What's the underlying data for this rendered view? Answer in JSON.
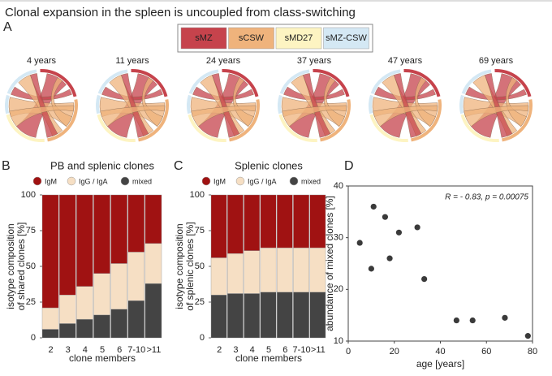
{
  "header": {
    "title": "Clonal expansion in the spleen is uncoupled from class-switching"
  },
  "panel_a": {
    "label": "A",
    "legend": [
      {
        "name": "sMZ",
        "color": "#c6434c"
      },
      {
        "name": "sCSW",
        "color": "#efb37c"
      },
      {
        "name": "sMD27",
        "color": "#fdf4c2"
      },
      {
        "name": "sMZ-CSW",
        "color": "#d4e8f4"
      }
    ],
    "diagrams": [
      "4 years",
      "11 years",
      "24 years",
      "37 years",
      "47 years",
      "69 years"
    ]
  },
  "chart_data": [
    {
      "type": "stacked_bar",
      "panel": "B",
      "title": "PB and splenic clones",
      "xlabel": "clone members",
      "ylabel": [
        "isotype composition",
        "of shared clones [%]"
      ],
      "categories": [
        "2",
        "3",
        "4",
        "5",
        "6",
        "7-10",
        ">11"
      ],
      "series": [
        {
          "name": "IgM",
          "color": "#a01212",
          "values": [
            79,
            70,
            64,
            55,
            48,
            40,
            34
          ]
        },
        {
          "name": "IgG / IgA",
          "color": "#f6dfc4",
          "values": [
            15,
            20,
            23,
            29,
            32,
            34,
            28
          ]
        },
        {
          "name": "mixed",
          "color": "#444444",
          "values": [
            6,
            10,
            13,
            16,
            20,
            26,
            38
          ]
        }
      ],
      "ylim": [
        0,
        100
      ],
      "yticks": [
        0,
        25,
        50,
        75,
        100
      ]
    },
    {
      "type": "stacked_bar",
      "panel": "C",
      "title": "Splenic clones",
      "xlabel": "clone members",
      "ylabel": [
        "isotype composition",
        "of splenic clones [%]"
      ],
      "categories": [
        "2",
        "3",
        "4",
        "5",
        "6",
        "7-10",
        ">11"
      ],
      "series": [
        {
          "name": "IgM",
          "color": "#a01212",
          "values": [
            44,
            41,
            39,
            37,
            37,
            37,
            37
          ]
        },
        {
          "name": "IgG / IgA",
          "color": "#f6dfc4",
          "values": [
            26,
            28,
            30,
            31,
            31,
            31,
            31
          ]
        },
        {
          "name": "mixed",
          "color": "#444444",
          "values": [
            30,
            31,
            31,
            32,
            32,
            32,
            32
          ]
        }
      ],
      "ylim": [
        0,
        100
      ],
      "yticks": [
        0,
        25,
        50,
        75,
        100
      ]
    },
    {
      "type": "scatter",
      "panel": "D",
      "xlabel": "age [years]",
      "ylabel": [
        "abundance of mixed clones [%]"
      ],
      "annotation": "R = - 0.83, p = 0.00075",
      "x": [
        5,
        10,
        11,
        16,
        18,
        22,
        30,
        33,
        47,
        54,
        68,
        78
      ],
      "values": [
        29,
        24,
        36,
        34,
        26,
        31,
        32,
        22,
        14,
        14,
        14.5,
        11
      ],
      "color": "#3a3a3a",
      "xlim": [
        0,
        80
      ],
      "xticks": [
        0,
        20,
        40,
        60,
        80
      ],
      "ylim": [
        10,
        40
      ],
      "yticks": [
        10,
        20,
        30,
        40
      ]
    }
  ]
}
